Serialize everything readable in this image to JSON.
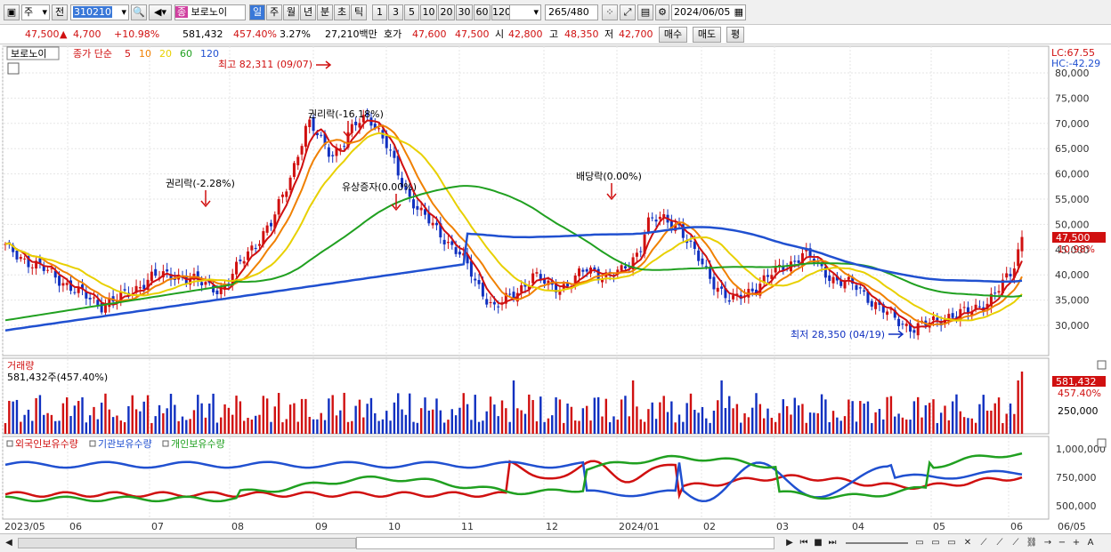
{
  "toolbar": {
    "period_main": "주",
    "prev_label": "전",
    "code": "310210",
    "stock_name": "보로노이",
    "stock_badge": "종",
    "periods": [
      "일",
      "주",
      "월",
      "년",
      "분",
      "초",
      "틱"
    ],
    "active_period": "일",
    "intervals": [
      "1",
      "3",
      "5",
      "10",
      "20",
      "30",
      "60",
      "120"
    ],
    "count": "265",
    "count_total": "/480",
    "date": "2024/06/05"
  },
  "quote": {
    "price": "47,500",
    "change": "4,700",
    "change_pct": "+10.98%",
    "volume": "581,432",
    "volume_ratio": "457.40%",
    "turnover": "3.27%",
    "amount": "27,210백만",
    "bid_label": "호가",
    "bid": "47,600",
    "ask": "47,500",
    "open_label": "시",
    "open": "42,800",
    "high_label": "고",
    "high": "48,350",
    "low_label": "저",
    "low": "42,700",
    "buy_label": "매수",
    "sell_label": "매도",
    "avg_label": "평"
  },
  "price_panel": {
    "name_tag": "보로노이",
    "ma_label": "종가 단순",
    "ma_periods": [
      {
        "label": "5",
        "color": "#d01010"
      },
      {
        "label": "10",
        "color": "#f08000"
      },
      {
        "label": "20",
        "color": "#e8d000"
      },
      {
        "label": "60",
        "color": "#20a020"
      },
      {
        "label": "120",
        "color": "#2050d0"
      }
    ],
    "lc": "LC:67.55",
    "hc": "HC:-42.29",
    "current_price": "47,500",
    "current_pct": "10.98%",
    "y_ticks": [
      "80,000",
      "75,000",
      "70,000",
      "65,000",
      "60,000",
      "55,000",
      "50,000",
      "45,000",
      "40,000",
      "35,000",
      "30,000"
    ],
    "annotations": {
      "high": "최고 82,311 (09/07)",
      "low": "최저 28,350 (04/19)",
      "rights1": "권리락(-2.28%)",
      "rights2": "권리락(-16.18%)",
      "rights3": "유상증자(0.00%)",
      "dividend": "배당락(0.00%)"
    }
  },
  "volume_panel": {
    "title": "거래량",
    "value": "581,432주(457.40%)",
    "current": "581,432",
    "current_pct": "457.40%",
    "y_tick": "250,000"
  },
  "holdings_panel": {
    "legend": [
      "외국인보유수량",
      "기관보유수량",
      "개인보유수량"
    ],
    "colors": [
      "#d01010",
      "#2050d0",
      "#20a020"
    ],
    "y_ticks": [
      "1,000,000",
      "750,000",
      "500,000"
    ]
  },
  "x_axis": {
    "labels": [
      "2023/05",
      "06",
      "07",
      "08",
      "09",
      "10",
      "11",
      "12",
      "2024/01",
      "02",
      "03",
      "04",
      "05",
      "06",
      "06/05"
    ]
  },
  "colors": {
    "up": "#d01010",
    "down": "#1030c0",
    "ma5": "#d01010",
    "ma10": "#f08000",
    "ma20": "#e8d000",
    "ma60": "#20a020",
    "ma120": "#2050d0"
  }
}
